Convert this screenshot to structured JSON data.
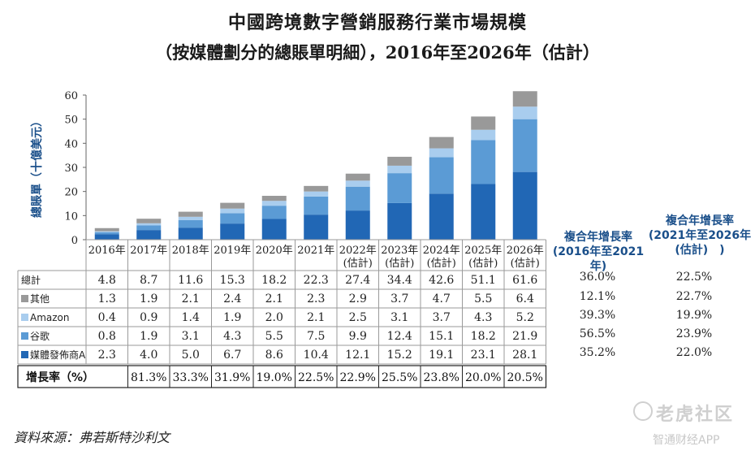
{
  "title_line1": "中國跨境數字營銷服務行業市場規模",
  "title_line2": "（按媒體劃分的總賬單明細），2016年至2026年（估計）",
  "source": "資料來源：弗若斯特沙利文",
  "watermark": {
    "brand": "老虎社区",
    "app": "智通财经APP",
    "logo_icon": "tiger-logo-icon"
  },
  "colors": {
    "media_a": "#2167b5",
    "google": "#5b9bd5",
    "amazon": "#a9cdee",
    "other": "#999999"
  },
  "chart_data": {
    "type": "bar",
    "stacked": true,
    "ylabel": "總賬單（十億美元）",
    "ylim": [
      0,
      60
    ],
    "yticks": [
      0,
      10,
      20,
      30,
      40,
      50,
      60
    ],
    "categories": [
      "2016年",
      "2017年",
      "2018年",
      "2019年",
      "2020年",
      "2021年",
      "2022年\n(估計)",
      "2023年\n(估計)",
      "2024年\n(估計)",
      "2025年\n(估計)",
      "2026年\n(估計)"
    ],
    "series": [
      {
        "name": "媒體發佈商A",
        "color": "#2167b5",
        "values": [
          2.3,
          4.0,
          5.0,
          6.7,
          8.6,
          10.4,
          12.1,
          15.2,
          19.1,
          23.1,
          28.1
        ]
      },
      {
        "name": "谷歌",
        "color": "#5b9bd5",
        "values": [
          0.8,
          1.9,
          3.1,
          4.3,
          5.5,
          7.5,
          9.9,
          12.4,
          15.1,
          18.2,
          21.9
        ]
      },
      {
        "name": "Amazon",
        "color": "#a9cdee",
        "values": [
          0.4,
          0.9,
          1.4,
          1.9,
          2.0,
          2.1,
          2.5,
          3.1,
          3.7,
          4.3,
          5.2
        ]
      },
      {
        "name": "其他",
        "color": "#999999",
        "values": [
          1.3,
          1.9,
          2.1,
          2.4,
          2.1,
          2.3,
          2.9,
          3.7,
          4.7,
          5.5,
          6.4
        ]
      }
    ],
    "totals_label": "總計",
    "totals": [
      4.8,
      8.7,
      11.6,
      15.3,
      18.2,
      22.3,
      27.4,
      34.4,
      42.6,
      51.1,
      61.6
    ],
    "growth_label": "增長率（%）",
    "growth": [
      "",
      "81.3%",
      "33.3%",
      "31.9%",
      "19.0%",
      "22.5%",
      "22.9%",
      "25.5%",
      "23.8%",
      "20.0%",
      "20.5%"
    ],
    "cagr_header_1": [
      "複合年增長率",
      "(2016年至2021年)"
    ],
    "cagr_header_2": [
      "複合年增長率",
      "(2021年至2026年",
      "(估計)　)"
    ],
    "cagr_rows": [
      {
        "label": "總計",
        "c1": "36.0%",
        "c2": "22.5%"
      },
      {
        "label": "其他",
        "c1": "12.1%",
        "c2": "22.7%"
      },
      {
        "label": "Amazon",
        "c1": "39.3%",
        "c2": "19.9%"
      },
      {
        "label": "谷歌",
        "c1": "56.5%",
        "c2": "23.9%"
      },
      {
        "label": "媒體發佈商A",
        "c1": "35.2%",
        "c2": "22.0%"
      }
    ]
  }
}
